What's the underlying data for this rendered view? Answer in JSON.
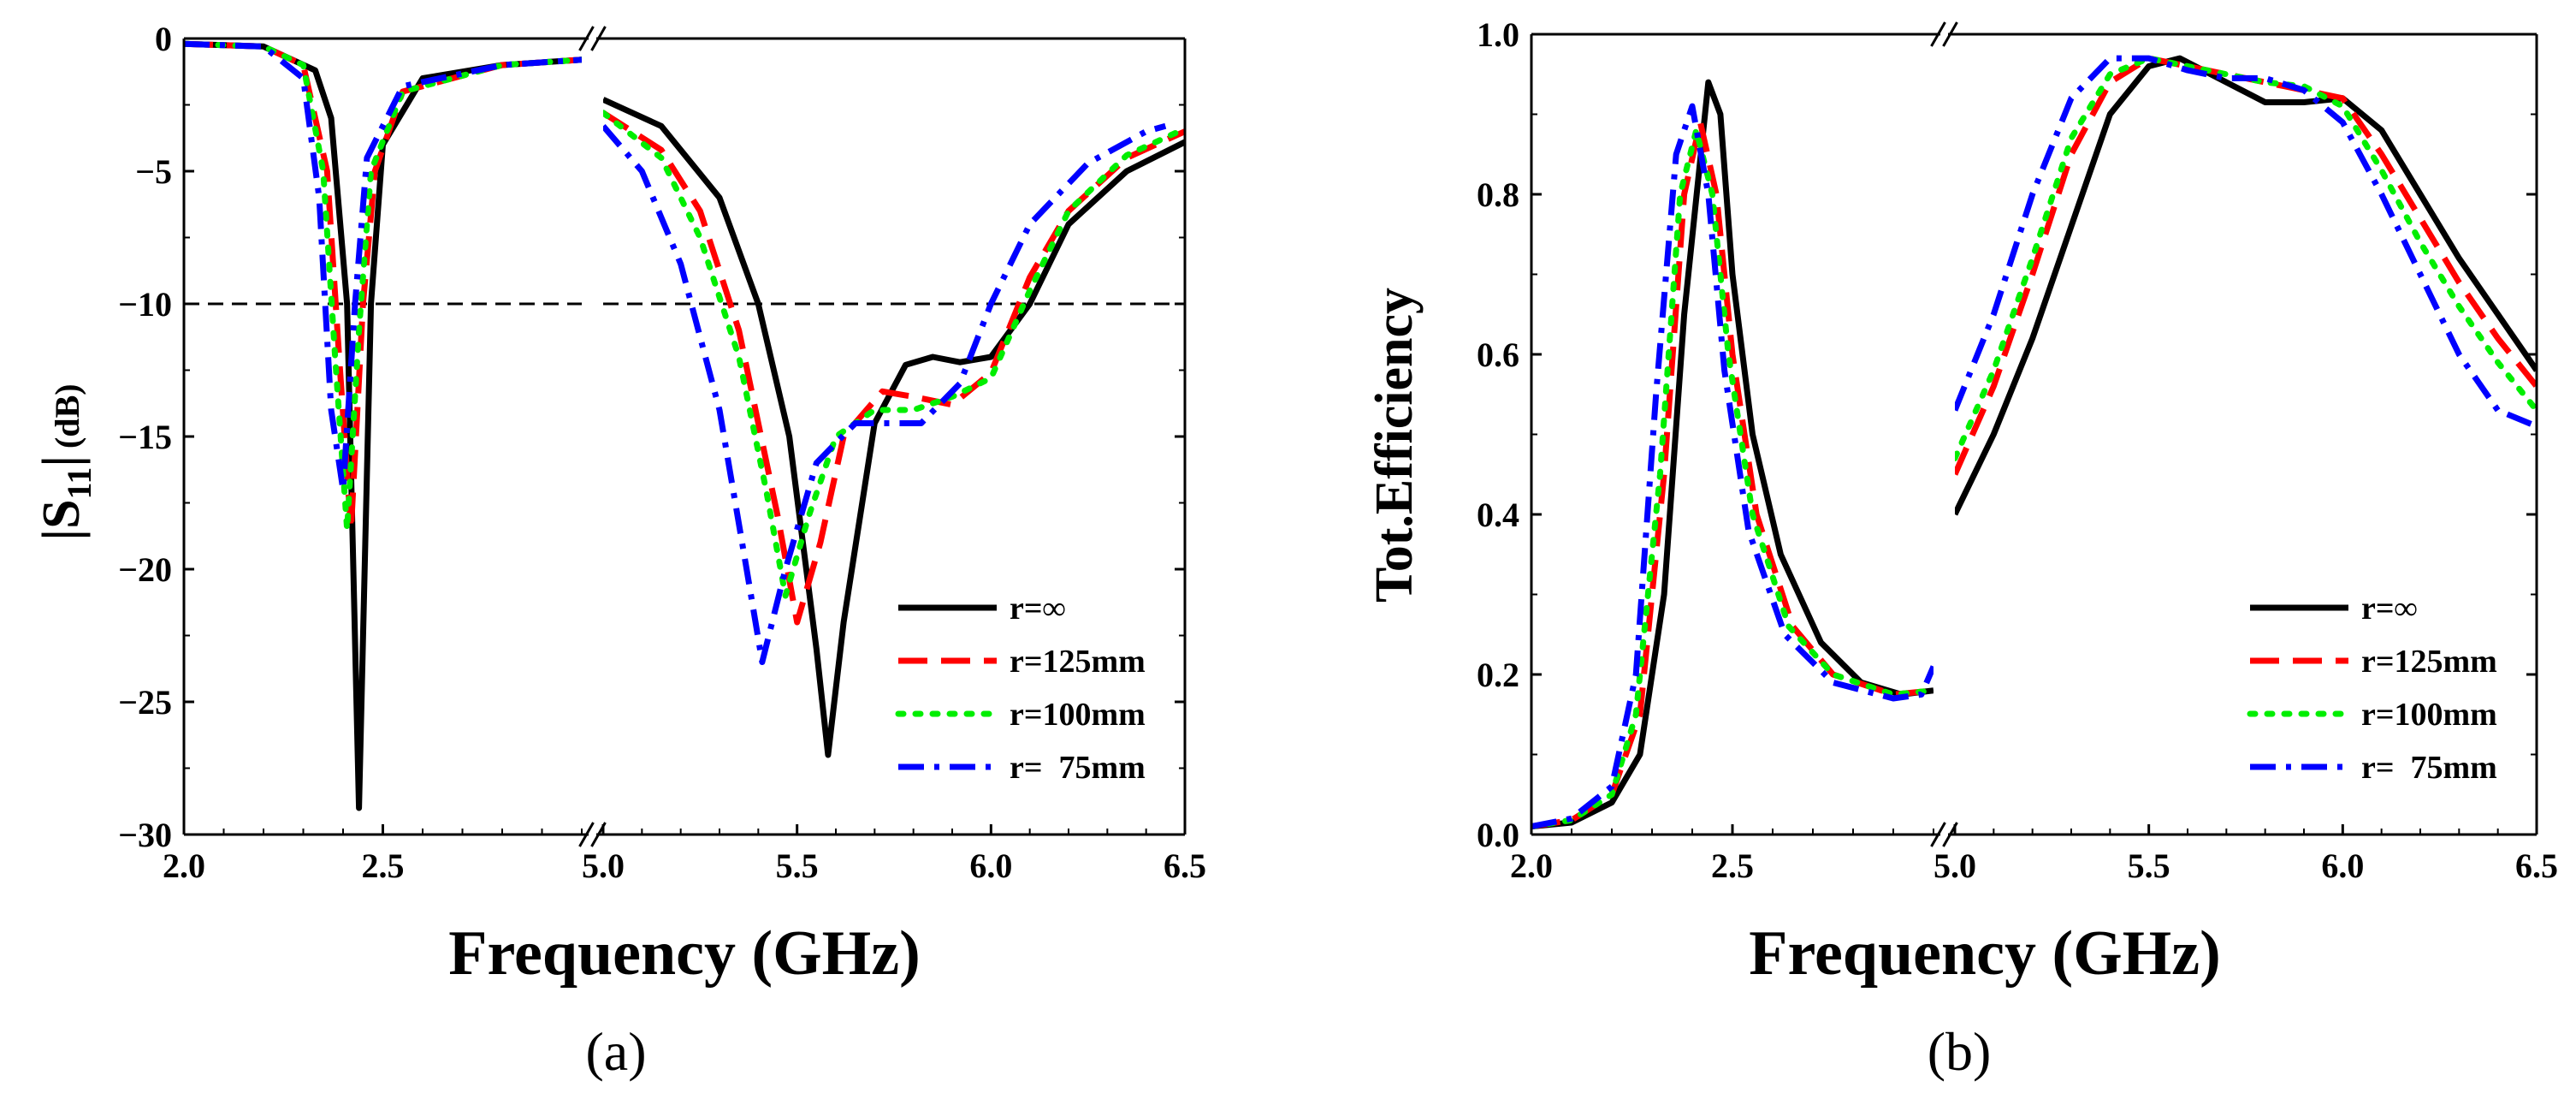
{
  "chart_data": [
    {
      "panel_label": "(a)",
      "type": "line",
      "xlabel": "Frequency (GHz)",
      "ylabel_main": "|S",
      "ylabel_sub": "11",
      "ylabel_tail": "|",
      "ylabel_unit": "(dB)",
      "ylim": [
        -30,
        0
      ],
      "yticks": [
        "0",
        "−5",
        "−10",
        "−15",
        "−20",
        "−25",
        "−30"
      ],
      "ytick_values": [
        0,
        -5,
        -10,
        -15,
        -20,
        -25,
        -30
      ],
      "x_segment_1": {
        "range": [
          2.0,
          3.0
        ],
        "ticks": [
          "2.0",
          "2.5"
        ],
        "tick_values": [
          2.0,
          2.5
        ]
      },
      "x_segment_2": {
        "range": [
          5.0,
          6.5
        ],
        "ticks": [
          "5.0",
          "5.5",
          "6.0",
          "6.5"
        ],
        "tick_values": [
          5.0,
          5.5,
          6.0,
          6.5
        ]
      },
      "reference_line": {
        "y": -10,
        "style": "dashed"
      },
      "legend_position": "lower-right",
      "series": [
        {
          "name": "r=∞",
          "color": "#000000",
          "style": "solid",
          "seg1": [
            [
              2.0,
              -0.2
            ],
            [
              2.2,
              -0.3
            ],
            [
              2.33,
              -1.2
            ],
            [
              2.37,
              -3
            ],
            [
              2.41,
              -10
            ],
            [
              2.44,
              -29
            ],
            [
              2.47,
              -10
            ],
            [
              2.5,
              -4
            ],
            [
              2.6,
              -1.5
            ],
            [
              2.8,
              -1
            ],
            [
              3.0,
              -0.8
            ]
          ],
          "seg2": [
            [
              5.0,
              -2.3
            ],
            [
              5.15,
              -3.3
            ],
            [
              5.3,
              -6
            ],
            [
              5.4,
              -10
            ],
            [
              5.48,
              -15
            ],
            [
              5.55,
              -23
            ],
            [
              5.58,
              -27
            ],
            [
              5.62,
              -22
            ],
            [
              5.7,
              -14.5
            ],
            [
              5.78,
              -12.3
            ],
            [
              5.85,
              -12
            ],
            [
              5.92,
              -12.2
            ],
            [
              6.0,
              -12
            ],
            [
              6.1,
              -10
            ],
            [
              6.2,
              -7
            ],
            [
              6.35,
              -5
            ],
            [
              6.5,
              -3.9
            ]
          ]
        },
        {
          "name": "r=125mm",
          "color": "#ff0000",
          "style": "dashed",
          "seg1": [
            [
              2.0,
              -0.2
            ],
            [
              2.2,
              -0.3
            ],
            [
              2.3,
              -1
            ],
            [
              2.36,
              -5
            ],
            [
              2.39,
              -12
            ],
            [
              2.42,
              -18.5
            ],
            [
              2.45,
              -10
            ],
            [
              2.48,
              -5
            ],
            [
              2.55,
              -2
            ],
            [
              2.8,
              -1
            ],
            [
              3.0,
              -0.8
            ]
          ],
          "seg2": [
            [
              5.0,
              -2.8
            ],
            [
              5.15,
              -4.2
            ],
            [
              5.25,
              -6.5
            ],
            [
              5.35,
              -11
            ],
            [
              5.45,
              -18
            ],
            [
              5.5,
              -22
            ],
            [
              5.56,
              -19
            ],
            [
              5.62,
              -15
            ],
            [
              5.72,
              -13.3
            ],
            [
              5.8,
              -13.5
            ],
            [
              5.9,
              -13.8
            ],
            [
              6.0,
              -12.6
            ],
            [
              6.1,
              -9
            ],
            [
              6.2,
              -6.5
            ],
            [
              6.35,
              -4.5
            ],
            [
              6.5,
              -3.5
            ]
          ]
        },
        {
          "name": "r=100mm",
          "color": "#00ee00",
          "style": "dotted",
          "seg1": [
            [
              2.0,
              -0.2
            ],
            [
              2.2,
              -0.3
            ],
            [
              2.3,
              -1
            ],
            [
              2.35,
              -5
            ],
            [
              2.38,
              -12
            ],
            [
              2.41,
              -18.5
            ],
            [
              2.44,
              -11
            ],
            [
              2.47,
              -5
            ],
            [
              2.55,
              -2
            ],
            [
              2.8,
              -1
            ],
            [
              3.0,
              -0.8
            ]
          ],
          "seg2": [
            [
              5.0,
              -2.8
            ],
            [
              5.15,
              -4.5
            ],
            [
              5.25,
              -7.5
            ],
            [
              5.35,
              -12
            ],
            [
              5.42,
              -17
            ],
            [
              5.47,
              -21
            ],
            [
              5.53,
              -18
            ],
            [
              5.6,
              -15
            ],
            [
              5.7,
              -14
            ],
            [
              5.8,
              -14
            ],
            [
              5.9,
              -13.5
            ],
            [
              6.0,
              -12.8
            ],
            [
              6.1,
              -9.5
            ],
            [
              6.2,
              -6.5
            ],
            [
              6.35,
              -4.4
            ],
            [
              6.5,
              -3.4
            ]
          ]
        },
        {
          "name": "r=  75mm",
          "color": "#0000ff",
          "style": "dashdot",
          "seg1": [
            [
              2.0,
              -0.2
            ],
            [
              2.2,
              -0.3
            ],
            [
              2.3,
              -1.5
            ],
            [
              2.34,
              -6
            ],
            [
              2.37,
              -14
            ],
            [
              2.4,
              -17
            ],
            [
              2.43,
              -10
            ],
            [
              2.46,
              -4.5
            ],
            [
              2.55,
              -1.8
            ],
            [
              2.8,
              -1
            ],
            [
              3.0,
              -0.8
            ]
          ],
          "seg2": [
            [
              5.0,
              -3.3
            ],
            [
              5.1,
              -5
            ],
            [
              5.2,
              -8.5
            ],
            [
              5.3,
              -14
            ],
            [
              5.37,
              -20
            ],
            [
              5.41,
              -23.5
            ],
            [
              5.47,
              -20
            ],
            [
              5.55,
              -16
            ],
            [
              5.65,
              -14.5
            ],
            [
              5.75,
              -14.5
            ],
            [
              5.82,
              -14.5
            ],
            [
              5.92,
              -13
            ],
            [
              6.0,
              -10
            ],
            [
              6.1,
              -7
            ],
            [
              6.25,
              -4.7
            ],
            [
              6.4,
              -3.5
            ],
            [
              6.45,
              -3.3
            ]
          ]
        }
      ]
    },
    {
      "panel_label": "(b)",
      "type": "line",
      "xlabel": "Frequency (GHz)",
      "ylabel": "Tot.Efficiency",
      "ylim": [
        0.0,
        1.0
      ],
      "yticks": [
        "0.0",
        "0.2",
        "0.4",
        "0.6",
        "0.8",
        "1.0"
      ],
      "ytick_values": [
        0.0,
        0.2,
        0.4,
        0.6,
        0.8,
        1.0
      ],
      "x_segment_1": {
        "range": [
          2.0,
          3.0
        ],
        "ticks": [
          "2.0",
          "2.5"
        ],
        "tick_values": [
          2.0,
          2.5
        ]
      },
      "x_segment_2": {
        "range": [
          5.0,
          6.5
        ],
        "ticks": [
          "5.0",
          "5.5",
          "6.0",
          "6.5"
        ],
        "tick_values": [
          5.0,
          5.5,
          6.0,
          6.5
        ]
      },
      "legend_position": "lower-right",
      "series": [
        {
          "name": "r=∞",
          "color": "#000000",
          "style": "solid",
          "seg1": [
            [
              2.0,
              0.01
            ],
            [
              2.1,
              0.015
            ],
            [
              2.2,
              0.04
            ],
            [
              2.27,
              0.1
            ],
            [
              2.33,
              0.3
            ],
            [
              2.38,
              0.65
            ],
            [
              2.44,
              0.94
            ],
            [
              2.47,
              0.9
            ],
            [
              2.5,
              0.7
            ],
            [
              2.55,
              0.5
            ],
            [
              2.62,
              0.35
            ],
            [
              2.72,
              0.24
            ],
            [
              2.82,
              0.19
            ],
            [
              2.92,
              0.175
            ],
            [
              3.0,
              0.18
            ]
          ],
          "seg2": [
            [
              5.0,
              0.4
            ],
            [
              5.1,
              0.5
            ],
            [
              5.2,
              0.62
            ],
            [
              5.3,
              0.76
            ],
            [
              5.4,
              0.9
            ],
            [
              5.5,
              0.96
            ],
            [
              5.58,
              0.97
            ],
            [
              5.7,
              0.94
            ],
            [
              5.8,
              0.915
            ],
            [
              5.9,
              0.915
            ],
            [
              6.0,
              0.92
            ],
            [
              6.1,
              0.88
            ],
            [
              6.2,
              0.8
            ],
            [
              6.3,
              0.72
            ],
            [
              6.4,
              0.65
            ],
            [
              6.5,
              0.58
            ]
          ]
        },
        {
          "name": "r=125mm",
          "color": "#ff0000",
          "style": "dashed",
          "seg1": [
            [
              2.0,
              0.01
            ],
            [
              2.1,
              0.018
            ],
            [
              2.2,
              0.05
            ],
            [
              2.27,
              0.15
            ],
            [
              2.33,
              0.45
            ],
            [
              2.38,
              0.8
            ],
            [
              2.42,
              0.89
            ],
            [
              2.46,
              0.8
            ],
            [
              2.5,
              0.6
            ],
            [
              2.56,
              0.4
            ],
            [
              2.65,
              0.26
            ],
            [
              2.75,
              0.2
            ],
            [
              2.9,
              0.175
            ],
            [
              3.0,
              0.18
            ]
          ],
          "seg2": [
            [
              5.0,
              0.45
            ],
            [
              5.1,
              0.56
            ],
            [
              5.2,
              0.7
            ],
            [
              5.3,
              0.85
            ],
            [
              5.4,
              0.94
            ],
            [
              5.5,
              0.97
            ],
            [
              5.6,
              0.96
            ],
            [
              5.7,
              0.95
            ],
            [
              5.8,
              0.94
            ],
            [
              5.9,
              0.93
            ],
            [
              6.0,
              0.92
            ],
            [
              6.1,
              0.85
            ],
            [
              6.2,
              0.77
            ],
            [
              6.3,
              0.69
            ],
            [
              6.4,
              0.62
            ],
            [
              6.5,
              0.56
            ]
          ]
        },
        {
          "name": "r=100mm",
          "color": "#00ee00",
          "style": "dotted",
          "seg1": [
            [
              2.0,
              0.01
            ],
            [
              2.1,
              0.018
            ],
            [
              2.2,
              0.05
            ],
            [
              2.26,
              0.15
            ],
            [
              2.32,
              0.45
            ],
            [
              2.37,
              0.8
            ],
            [
              2.41,
              0.88
            ],
            [
              2.45,
              0.8
            ],
            [
              2.49,
              0.6
            ],
            [
              2.55,
              0.4
            ],
            [
              2.64,
              0.26
            ],
            [
              2.75,
              0.2
            ],
            [
              2.9,
              0.175
            ],
            [
              3.0,
              0.18
            ]
          ],
          "seg2": [
            [
              5.0,
              0.47
            ],
            [
              5.1,
              0.58
            ],
            [
              5.2,
              0.72
            ],
            [
              5.3,
              0.87
            ],
            [
              5.4,
              0.95
            ],
            [
              5.5,
              0.97
            ],
            [
              5.6,
              0.96
            ],
            [
              5.7,
              0.95
            ],
            [
              5.8,
              0.94
            ],
            [
              5.9,
              0.935
            ],
            [
              6.0,
              0.91
            ],
            [
              6.1,
              0.83
            ],
            [
              6.2,
              0.74
            ],
            [
              6.3,
              0.66
            ],
            [
              6.4,
              0.59
            ],
            [
              6.5,
              0.53
            ]
          ]
        },
        {
          "name": "r=  75mm",
          "color": "#0000ff",
          "style": "dashdot",
          "seg1": [
            [
              2.0,
              0.01
            ],
            [
              2.1,
              0.02
            ],
            [
              2.2,
              0.06
            ],
            [
              2.26,
              0.2
            ],
            [
              2.31,
              0.55
            ],
            [
              2.36,
              0.85
            ],
            [
              2.4,
              0.91
            ],
            [
              2.44,
              0.8
            ],
            [
              2.48,
              0.58
            ],
            [
              2.54,
              0.38
            ],
            [
              2.63,
              0.25
            ],
            [
              2.75,
              0.19
            ],
            [
              2.9,
              0.17
            ],
            [
              2.97,
              0.175
            ],
            [
              3.0,
              0.21
            ]
          ],
          "seg2": [
            [
              5.0,
              0.53
            ],
            [
              5.1,
              0.65
            ],
            [
              5.2,
              0.8
            ],
            [
              5.3,
              0.92
            ],
            [
              5.4,
              0.97
            ],
            [
              5.5,
              0.97
            ],
            [
              5.6,
              0.955
            ],
            [
              5.7,
              0.945
            ],
            [
              5.8,
              0.945
            ],
            [
              5.9,
              0.93
            ],
            [
              6.0,
              0.89
            ],
            [
              6.1,
              0.8
            ],
            [
              6.2,
              0.7
            ],
            [
              6.3,
              0.6
            ],
            [
              6.4,
              0.53
            ],
            [
              6.5,
              0.51
            ]
          ]
        }
      ]
    }
  ]
}
